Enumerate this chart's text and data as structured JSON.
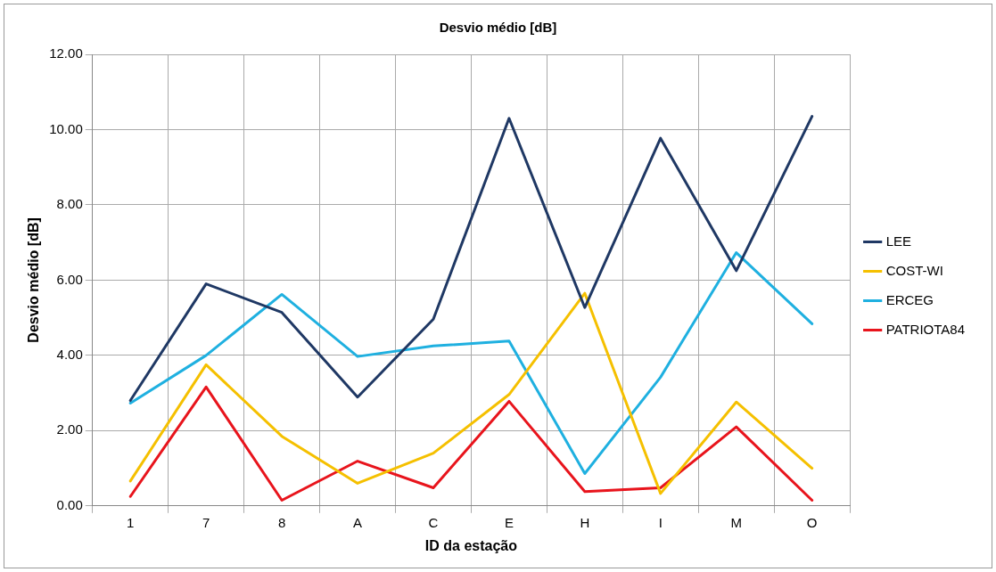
{
  "chart_data": {
    "type": "line",
    "title": "Desvio médio [dB]",
    "xlabel": "ID da estação",
    "ylabel": "Desvio médio [dB]",
    "categories": [
      "1",
      "7",
      "8",
      "A",
      "C",
      "E",
      "H",
      "I",
      "M",
      "O"
    ],
    "series": [
      {
        "name": "LEE",
        "color": "#1f3864",
        "values": [
          2.8,
          5.9,
          5.14,
          2.89,
          4.96,
          10.3,
          5.27,
          9.77,
          6.25,
          10.35
        ]
      },
      {
        "name": "COST-WI",
        "color": "#f5c000",
        "values": [
          0.66,
          3.75,
          1.85,
          0.6,
          1.4,
          2.96,
          5.65,
          0.33,
          2.76,
          1.0
        ]
      },
      {
        "name": "ERCEG",
        "color": "#1fb0e0",
        "values": [
          2.73,
          4.0,
          5.62,
          3.97,
          4.25,
          4.38,
          0.86,
          3.42,
          6.73,
          4.84
        ]
      },
      {
        "name": "PATRIOTA84",
        "color": "#e8141c",
        "values": [
          0.25,
          3.16,
          0.15,
          1.19,
          0.48,
          2.78,
          0.38,
          0.48,
          2.1,
          0.15
        ]
      }
    ],
    "ylim": [
      0,
      12
    ],
    "yticks": [
      {
        "value": 0,
        "label": "0.00"
      },
      {
        "value": 2,
        "label": "2.00"
      },
      {
        "value": 4,
        "label": "4.00"
      },
      {
        "value": 6,
        "label": "6.00"
      },
      {
        "value": 8,
        "label": "8.00"
      },
      {
        "value": 10,
        "label": "10.00"
      },
      {
        "value": 12,
        "label": "12.00"
      }
    ],
    "grid": true,
    "legend": "right",
    "marker": "none",
    "line_style": "solid"
  }
}
